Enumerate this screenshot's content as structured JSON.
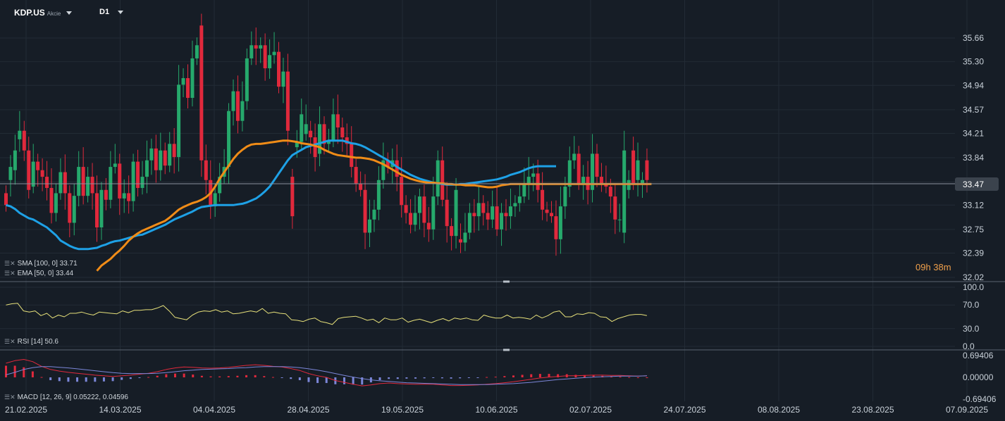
{
  "header": {
    "symbol": "KDP.US",
    "type": "Akcie",
    "timeframe": "D1"
  },
  "timer": "09h 38m",
  "legends": {
    "sma": "SMA [100, 0] 33.71",
    "ema": "EMA [50, 0] 33.44",
    "rsi": "RSI [14] 50.6",
    "macd": "MACD [12, 26, 9] 0.05222,  0.04596"
  },
  "colors": {
    "background": "#161d26",
    "up": "#26a96c",
    "down": "#e0293c",
    "sma": "#1ea1e6",
    "ema": "#f08c17",
    "rsi": "#e6e07a",
    "macd_line": "#e0293c",
    "signal_line": "#7b86d8",
    "hist_pos": "#e0293c",
    "hist_neg": "#7b86d8"
  },
  "chart_data": {
    "type": "candlestick",
    "price_axis": {
      "ticks": [
        "35.66",
        "35.30",
        "34.94",
        "34.57",
        "34.21",
        "33.84",
        "33.47",
        "33.12",
        "32.75",
        "32.39",
        "32.02"
      ],
      "range": [
        32.02,
        35.66
      ],
      "current_price": "33.47"
    },
    "date_axis": [
      "21.02.2025",
      "14.03.2025",
      "04.04.2025",
      "28.04.2025",
      "19.05.2025",
      "10.06.2025",
      "02.07.2025",
      "24.07.2025",
      "08.08.2025",
      "23.08.2025",
      "07.09.2025"
    ],
    "closes": [
      33.12,
      33.7,
      33.95,
      34.25,
      33.95,
      33.35,
      33.78,
      33.65,
      33.55,
      33.38,
      33.0,
      33.3,
      33.62,
      33.3,
      32.85,
      33.26,
      33.7,
      33.26,
      33.55,
      33.3,
      32.78,
      33.35,
      33.2,
      33.7,
      33.75,
      33.22,
      33.3,
      33.18,
      33.78,
      33.38,
      33.55,
      33.8,
      33.98,
      33.65,
      33.95,
      33.72,
      34.05,
      33.85,
      34.95,
      35.05,
      34.75,
      35.35,
      35.55,
      33.8,
      33.5,
      33.1,
      33.3,
      33.55,
      33.7,
      34.55,
      34.85,
      34.4,
      34.7,
      35.35,
      35.55,
      35.5,
      35.55,
      35.2,
      35.4,
      35.45,
      34.92,
      35.15,
      34.25,
      32.95,
      34.08,
      34.5,
      34.35,
      34.15,
      33.85,
      34.35,
      34.05,
      34.1,
      34.5,
      34.3,
      34.15,
      34.05,
      33.7,
      33.45,
      33.35,
      32.7,
      32.9,
      33.05,
      33.5,
      33.8,
      33.7,
      33.8,
      33.55,
      33.12,
      33.0,
      32.82,
      33.0,
      33.25,
      32.85,
      32.75,
      33.25,
      33.8,
      33.2,
      32.8,
      32.65,
      33.35,
      32.55,
      32.7,
      33.0,
      32.95,
      33.15,
      33.0,
      32.9,
      33.1,
      32.75,
      33.0,
      32.95,
      33.1,
      33.15,
      33.25,
      33.45,
      33.55,
      33.6,
      33.35,
      33.05,
      33.0,
      32.95,
      32.6,
      33.1,
      33.4,
      33.8,
      33.9,
      33.45,
      33.55,
      33.35,
      33.9,
      33.55,
      33.45,
      33.4,
      33.25,
      32.9,
      32.9,
      33.95,
      33.5,
      33.45,
      33.8,
      33.5,
      33.5
    ],
    "opens": [
      33.3,
      33.5,
      33.65,
      34.12,
      34.25,
      33.95,
      33.4,
      33.78,
      33.65,
      33.55,
      33.38,
      33.0,
      33.3,
      33.62,
      33.3,
      32.85,
      33.26,
      33.7,
      33.26,
      33.55,
      33.3,
      32.78,
      33.35,
      33.2,
      33.7,
      33.75,
      33.22,
      33.3,
      33.18,
      33.78,
      33.38,
      33.55,
      33.8,
      33.98,
      33.65,
      33.95,
      33.72,
      34.05,
      33.85,
      34.95,
      35.05,
      34.75,
      35.35,
      35.85,
      33.8,
      33.5,
      33.1,
      33.3,
      33.55,
      33.7,
      34.55,
      34.85,
      34.4,
      34.7,
      35.35,
      35.55,
      35.5,
      35.55,
      35.2,
      35.4,
      35.45,
      34.92,
      35.15,
      33.55,
      34.0,
      34.08,
      34.2,
      34.25,
      34.15,
      33.9,
      34.35,
      34.05,
      34.1,
      34.5,
      34.3,
      34.15,
      34.05,
      33.7,
      33.45,
      33.35,
      32.7,
      32.9,
      33.05,
      33.5,
      33.8,
      33.7,
      33.8,
      33.55,
      33.12,
      33.0,
      32.82,
      33.0,
      33.25,
      32.85,
      32.75,
      33.25,
      33.8,
      33.2,
      32.8,
      32.65,
      32.6,
      32.55,
      32.7,
      33.0,
      32.95,
      33.15,
      33.0,
      32.9,
      33.1,
      32.75,
      33.0,
      32.95,
      33.1,
      33.15,
      33.25,
      33.45,
      33.55,
      33.6,
      33.35,
      33.05,
      33.0,
      32.95,
      32.6,
      33.1,
      33.4,
      33.8,
      33.9,
      33.45,
      33.55,
      33.35,
      33.9,
      33.55,
      33.45,
      33.4,
      33.25,
      32.9,
      32.7,
      33.35,
      33.95,
      33.5,
      33.45,
      33.8,
      33.62
    ],
    "sma": [
      33.12,
      33.1,
      33.06,
      33.0,
      32.96,
      32.92,
      32.9,
      32.86,
      32.82,
      32.78,
      32.72,
      32.66,
      32.58,
      32.54,
      32.5,
      32.47,
      32.45,
      32.45,
      32.45,
      32.46,
      32.47,
      32.5,
      32.52,
      32.55,
      32.57,
      32.58,
      32.6,
      32.62,
      32.64,
      32.66,
      32.67,
      32.7,
      32.73,
      32.76,
      32.79,
      32.82,
      32.86,
      32.9,
      32.93,
      32.96,
      32.99,
      33.02,
      33.06,
      33.09,
      33.1,
      33.11,
      33.12,
      33.12,
      33.12,
      33.12,
      33.12,
      33.13,
      33.14,
      33.16,
      33.19,
      33.22,
      33.27,
      33.33,
      33.4,
      33.5,
      33.6,
      33.7,
      33.8,
      33.88,
      33.92,
      33.96,
      34.0,
      34.02,
      34.04,
      34.06,
      34.08,
      34.1,
      34.1,
      34.1,
      34.1,
      34.08,
      34.06,
      34.05,
      34.03,
      34.0,
      33.96,
      33.92,
      33.88,
      33.84,
      33.8,
      33.75,
      33.7,
      33.66,
      33.62,
      33.58,
      33.55,
      33.52,
      33.5,
      33.48,
      33.46,
      33.45,
      33.44,
      33.43,
      33.43,
      33.43,
      33.44,
      33.44,
      33.45,
      33.46,
      33.47,
      33.48,
      33.49,
      33.5,
      33.51,
      33.53,
      33.55,
      33.58,
      33.6,
      33.62,
      33.65,
      33.68,
      33.7,
      33.71,
      33.71,
      33.71,
      33.71,
      33.71
    ],
    "ema_start_index": 20,
    "ema": [
      32.12,
      32.2,
      32.25,
      32.3,
      32.37,
      32.43,
      32.5,
      32.58,
      32.64,
      32.69,
      32.73,
      32.76,
      32.79,
      32.82,
      32.85,
      32.88,
      32.93,
      32.99,
      33.05,
      33.09,
      33.12,
      33.15,
      33.17,
      33.2,
      33.24,
      33.3,
      33.4,
      33.52,
      33.62,
      33.72,
      33.82,
      33.9,
      33.96,
      34.01,
      34.04,
      34.05,
      34.05,
      34.06,
      34.07,
      34.08,
      34.09,
      34.1,
      34.1,
      34.09,
      34.08,
      34.06,
      34.05,
      34.04,
      34.02,
      34.0,
      33.96,
      33.93,
      33.9,
      33.88,
      33.87,
      33.86,
      33.85,
      33.84,
      33.84,
      33.83,
      33.82,
      33.8,
      33.77,
      33.74,
      33.7,
      33.66,
      33.62,
      33.58,
      33.55,
      33.52,
      33.5,
      33.48,
      33.47,
      33.46,
      33.46,
      33.45,
      33.45,
      33.44,
      33.44,
      33.43,
      33.43,
      33.42,
      33.42,
      33.42,
      33.41,
      33.4,
      33.39,
      33.39,
      33.4,
      33.42,
      33.43,
      33.44,
      33.44,
      33.44,
      33.44,
      33.44,
      33.44,
      33.44,
      33.44,
      33.44,
      33.44,
      33.44,
      33.44,
      33.44,
      33.44,
      33.44,
      33.44,
      33.44,
      33.44,
      33.44,
      33.44,
      33.44,
      33.44,
      33.44,
      33.44,
      33.44,
      33.44,
      33.44,
      33.44,
      33.44,
      33.44,
      33.44,
      33.44
    ],
    "rsi": {
      "ticks": [
        "100.0",
        "70.0",
        "30.0",
        "0.0"
      ],
      "range": [
        0,
        100
      ],
      "values": [
        70,
        72,
        73,
        60,
        58,
        60,
        52,
        56,
        48,
        53,
        50,
        56,
        56,
        58,
        55,
        53,
        58,
        57,
        56,
        55,
        60,
        57,
        61,
        61,
        62,
        62,
        65,
        69,
        60,
        49,
        47,
        45,
        53,
        58,
        60,
        59,
        62,
        58,
        60,
        55,
        56,
        58,
        60,
        58,
        64,
        56,
        58,
        56,
        55,
        45,
        44,
        42,
        46,
        48,
        42,
        40,
        37,
        47,
        49,
        50,
        51,
        48,
        44,
        46,
        40,
        48,
        45,
        45,
        48,
        41,
        44,
        46,
        43,
        40,
        44,
        47,
        43,
        48,
        46,
        48,
        45,
        44,
        53,
        50,
        48,
        48,
        53,
        48,
        49,
        48,
        46,
        53,
        48,
        52,
        58,
        60,
        50,
        50,
        55,
        54,
        57,
        56,
        50,
        49,
        42,
        47,
        50,
        53,
        54,
        54,
        52
      ]
    },
    "macd": {
      "ticks": [
        "0.69406",
        "0.00000",
        "-0.69406"
      ],
      "range": [
        -0.69406,
        0.69406
      ],
      "macd": [
        0.45,
        0.53,
        0.57,
        0.5,
        0.35,
        0.25,
        0.2,
        0.16,
        0.13,
        0.1,
        0.07,
        0.05,
        0.03,
        0.05,
        0.07,
        0.1,
        0.13,
        0.18,
        0.25,
        0.3,
        0.33,
        0.32,
        0.3,
        0.29,
        0.3,
        0.32,
        0.35,
        0.38,
        0.4,
        0.38,
        0.35,
        0.33,
        0.28,
        0.22,
        0.12,
        0.05,
        0.0,
        -0.1,
        -0.16,
        -0.22,
        -0.27,
        -0.24,
        -0.2,
        -0.18,
        -0.2,
        -0.21,
        -0.22,
        -0.22,
        -0.22,
        -0.24,
        -0.26,
        -0.26,
        -0.25,
        -0.24,
        -0.22,
        -0.2,
        -0.17,
        -0.14,
        -0.1,
        -0.06,
        -0.02,
        0.01,
        0.03,
        0.05,
        0.05,
        0.06,
        0.07,
        0.07,
        0.06,
        0.06,
        0.05,
        0.04,
        0.05
      ],
      "signal": [
        0.08,
        0.16,
        0.25,
        0.31,
        0.34,
        0.34,
        0.32,
        0.3,
        0.27,
        0.24,
        0.21,
        0.18,
        0.15,
        0.13,
        0.12,
        0.12,
        0.12,
        0.13,
        0.15,
        0.18,
        0.21,
        0.23,
        0.25,
        0.26,
        0.27,
        0.28,
        0.3,
        0.31,
        0.33,
        0.34,
        0.34,
        0.34,
        0.33,
        0.31,
        0.27,
        0.23,
        0.18,
        0.12,
        0.06,
        0.01,
        -0.04,
        -0.08,
        -0.11,
        -0.13,
        -0.15,
        -0.17,
        -0.18,
        -0.19,
        -0.2,
        -0.21,
        -0.22,
        -0.23,
        -0.23,
        -0.23,
        -0.23,
        -0.22,
        -0.21,
        -0.2,
        -0.18,
        -0.16,
        -0.13,
        -0.1,
        -0.07,
        -0.05,
        -0.03,
        -0.01,
        0.01,
        0.02,
        0.03,
        0.04,
        0.04,
        0.04,
        0.05
      ],
      "histogram": [
        0.37,
        0.37,
        0.32,
        0.19,
        0.01,
        -0.09,
        -0.12,
        -0.14,
        -0.14,
        -0.14,
        -0.14,
        -0.13,
        -0.12,
        -0.08,
        -0.05,
        -0.02,
        0.01,
        0.05,
        0.1,
        0.12,
        0.12,
        0.09,
        0.05,
        0.03,
        0.03,
        0.04,
        0.05,
        0.07,
        0.07,
        0.04,
        0.01,
        -0.01,
        -0.05,
        -0.09,
        -0.15,
        -0.18,
        -0.18,
        -0.22,
        -0.22,
        -0.23,
        -0.23,
        -0.16,
        -0.09,
        -0.05,
        -0.05,
        -0.04,
        -0.04,
        -0.03,
        -0.02,
        -0.03,
        -0.04,
        -0.03,
        -0.02,
        -0.01,
        0.01,
        0.02,
        0.04,
        0.06,
        0.08,
        0.1,
        0.11,
        0.11,
        0.1,
        0.1,
        0.08,
        0.07,
        0.06,
        0.05,
        0.03,
        0.02,
        0.01,
        0.0,
        0.0
      ]
    }
  }
}
